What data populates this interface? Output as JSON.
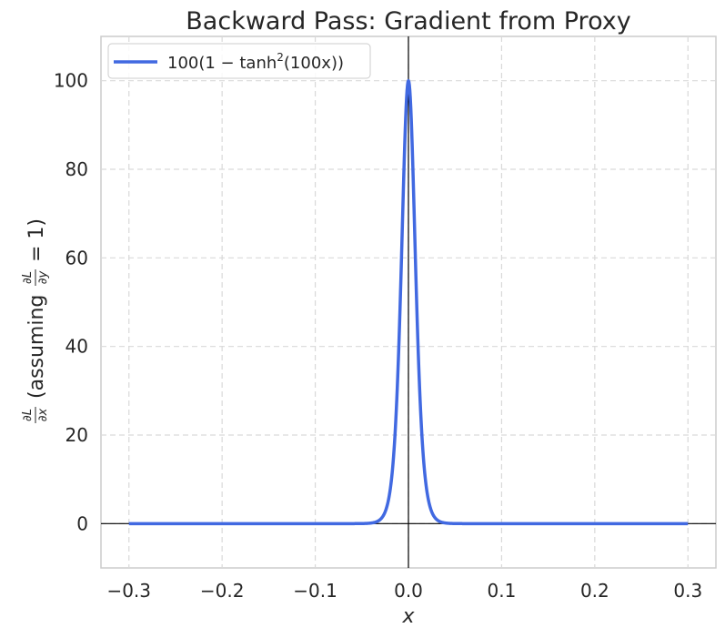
{
  "chart_data": {
    "type": "line",
    "title": "Backward Pass: Gradient from Proxy",
    "xlabel": "x",
    "ylabel": {
      "dl_num": "∂L",
      "dl_den": "∂x",
      "paren_open": "(assuming",
      "dy_num": "∂L",
      "dy_den": "∂y",
      "paren_close": "= 1)"
    },
    "xlim": [
      -0.33,
      0.33
    ],
    "ylim": [
      -10,
      110
    ],
    "xticks": [
      -0.3,
      -0.2,
      -0.1,
      0.0,
      0.1,
      0.2,
      0.3
    ],
    "xtick_labels": [
      "−0.3",
      "−0.2",
      "−0.1",
      "0.0",
      "0.1",
      "0.2",
      "0.3"
    ],
    "yticks": [
      0,
      20,
      40,
      60,
      80,
      100
    ],
    "ytick_labels": [
      "0",
      "20",
      "40",
      "60",
      "80",
      "100"
    ],
    "grid": true,
    "legend_position": "top-left",
    "series": [
      {
        "name": "100(1 − tanh²(100x))",
        "legend": {
          "pre": "100(1 − tanh",
          "sup": "2",
          "post": "(100x))"
        },
        "color": "#4169E1",
        "function": "100*(1 - tanh(100*x)^2)",
        "x_range": [
          -0.3,
          0.3
        ],
        "x": [
          -0.3,
          -0.05,
          -0.04,
          -0.03,
          -0.025,
          -0.02,
          -0.015,
          -0.01,
          -0.005,
          0.0,
          0.005,
          0.01,
          0.015,
          0.02,
          0.025,
          0.03,
          0.04,
          0.05,
          0.3
        ],
        "y": [
          0.0,
          0.018,
          0.134,
          0.99,
          2.66,
          7.07,
          18.1,
          42.0,
          78.6,
          100.0,
          78.6,
          42.0,
          18.1,
          7.07,
          2.66,
          0.99,
          0.134,
          0.018,
          0.0
        ]
      }
    ],
    "reference_lines": {
      "x0": true,
      "y0": true,
      "color": "#000000"
    }
  }
}
